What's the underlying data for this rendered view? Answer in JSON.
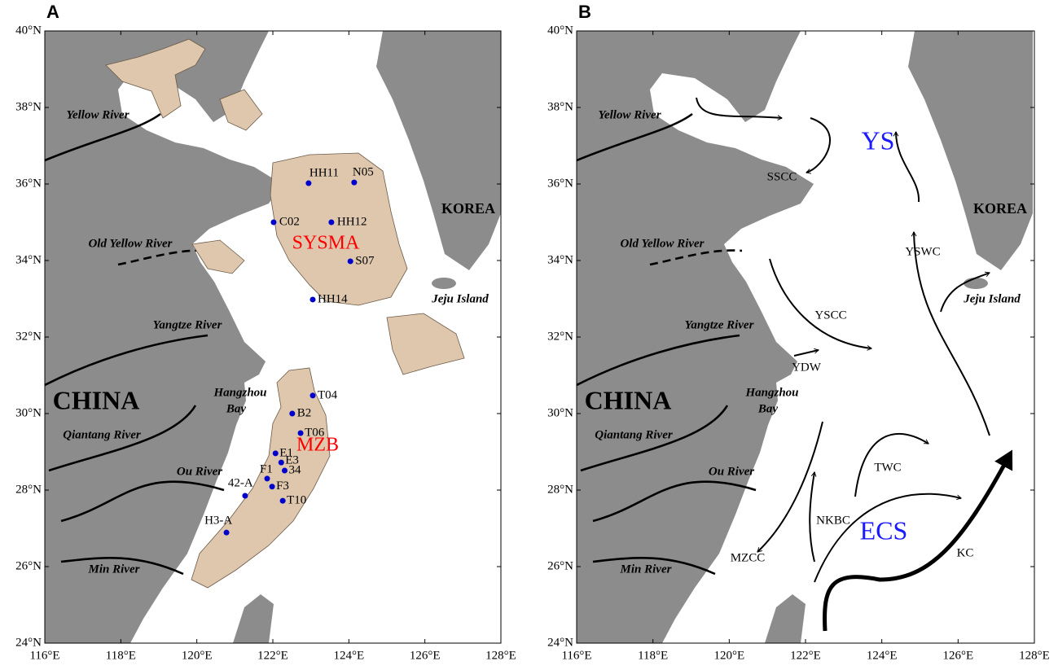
{
  "panels": [
    {
      "label": "A",
      "lon_range": [
        116,
        128
      ],
      "lat_range": [
        24,
        40
      ],
      "lon_ticks": [
        {
          "value": 116,
          "label": "116°E"
        },
        {
          "value": 118,
          "label": "118°E"
        },
        {
          "value": 120,
          "label": "120°E"
        },
        {
          "value": 122,
          "label": "122°E"
        },
        {
          "value": 124,
          "label": "124°E"
        },
        {
          "value": 126,
          "label": "126°E"
        },
        {
          "value": 128,
          "label": "128°E"
        }
      ],
      "lat_ticks": [
        {
          "value": 24,
          "label": "24°N"
        },
        {
          "value": 26,
          "label": "26°N"
        },
        {
          "value": 28,
          "label": "28°N"
        },
        {
          "value": 30,
          "label": "30°N"
        },
        {
          "value": 32,
          "label": "32°N"
        },
        {
          "value": 34,
          "label": "34°N"
        },
        {
          "value": 36,
          "label": "36°N"
        },
        {
          "value": 38,
          "label": "38°N"
        },
        {
          "value": 40,
          "label": "40°N"
        }
      ],
      "places": [
        "Yellow River",
        "Old Yellow River",
        "Yangtze River",
        "Hangzhou",
        "Bay",
        "Qiantang River",
        "Ou River",
        "Min River",
        "CHINA",
        "KOREA",
        "Jeju Island"
      ],
      "areas": [
        "SYSMA",
        "MZB"
      ],
      "stations": [
        {
          "name": "HH11",
          "lon": 122.94,
          "lat": 36.02
        },
        {
          "name": "N05",
          "lon": 124.14,
          "lat": 36.04
        },
        {
          "name": "C02",
          "lon": 122.02,
          "lat": 35.0
        },
        {
          "name": "HH12",
          "lon": 123.54,
          "lat": 35.0
        },
        {
          "name": "S07",
          "lon": 124.04,
          "lat": 33.98
        },
        {
          "name": "HH14",
          "lon": 123.05,
          "lat": 32.98
        },
        {
          "name": "T04",
          "lon": 123.05,
          "lat": 30.47
        },
        {
          "name": "B2",
          "lon": 122.51,
          "lat": 30.0
        },
        {
          "name": "T06",
          "lon": 122.73,
          "lat": 29.49
        },
        {
          "name": "E1",
          "lon": 122.07,
          "lat": 28.96
        },
        {
          "name": "E3",
          "lon": 122.22,
          "lat": 28.72
        },
        {
          "name": "34",
          "lon": 122.31,
          "lat": 28.51
        },
        {
          "name": "F1",
          "lon": 121.85,
          "lat": 28.3
        },
        {
          "name": "F3",
          "lon": 121.98,
          "lat": 28.09
        },
        {
          "name": "T10",
          "lon": 122.26,
          "lat": 27.72
        },
        {
          "name": "42-A",
          "lon": 121.27,
          "lat": 27.85
        },
        {
          "name": "H3-A",
          "lon": 120.78,
          "lat": 26.89
        }
      ]
    },
    {
      "label": "B",
      "lon_range": [
        116,
        128
      ],
      "lat_range": [
        24,
        40
      ],
      "lon_ticks": [
        {
          "value": 116,
          "label": "116°E"
        },
        {
          "value": 118,
          "label": "118°E"
        },
        {
          "value": 120,
          "label": "120°E"
        },
        {
          "value": 122,
          "label": "122°E"
        },
        {
          "value": 124,
          "label": "124°E"
        },
        {
          "value": 126,
          "label": "126°E"
        },
        {
          "value": 128,
          "label": "128°E"
        }
      ],
      "lat_ticks": [
        {
          "value": 24,
          "label": "24°N"
        },
        {
          "value": 26,
          "label": "26°N"
        },
        {
          "value": 28,
          "label": "28°N"
        },
        {
          "value": 30,
          "label": "30°N"
        },
        {
          "value": 32,
          "label": "32°N"
        },
        {
          "value": 34,
          "label": "34°N"
        },
        {
          "value": 36,
          "label": "36°N"
        },
        {
          "value": 38,
          "label": "38°N"
        },
        {
          "value": 40,
          "label": "40°N"
        }
      ],
      "places": [
        "Yellow River",
        "Old Yellow River",
        "Yangtze River",
        "Hangzhou",
        "Bay",
        "Qiantang River",
        "Ou River",
        "Min River",
        "CHINA",
        "KOREA",
        "Jeju Island"
      ],
      "seas": [
        "YS",
        "ECS"
      ],
      "currents": [
        "SSCC",
        "YSCC",
        "YDW",
        "YSWC",
        "TWC",
        "NKBC",
        "MZCC",
        "KC"
      ]
    }
  ]
}
